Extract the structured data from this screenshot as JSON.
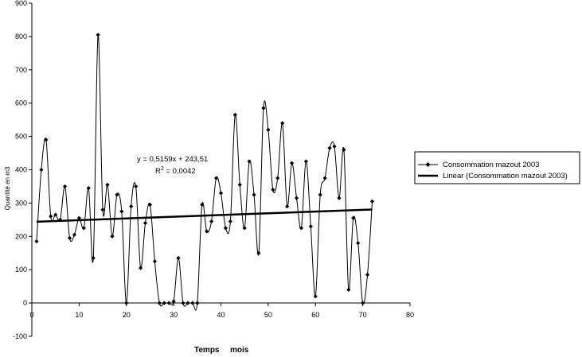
{
  "chart_data": {
    "type": "line",
    "title": "",
    "xlabel_left": "Temps",
    "xlabel_right": "mois",
    "ylabel": "Quantité en m3",
    "xlim": [
      0,
      80
    ],
    "ylim": [
      -100,
      900
    ],
    "xticks": [
      0,
      10,
      20,
      30,
      40,
      50,
      60,
      70,
      80
    ],
    "yticks": [
      -100,
      0,
      100,
      200,
      300,
      400,
      500,
      600,
      700,
      800,
      900
    ],
    "grid": false,
    "legend_position": "right",
    "series": [
      {
        "name": "Consommation mazout 2003",
        "type": "line-markers",
        "x": [
          1,
          2,
          3,
          4,
          5,
          6,
          7,
          8,
          9,
          10,
          11,
          12,
          13,
          14,
          15,
          16,
          17,
          18,
          19,
          20,
          21,
          22,
          23,
          24,
          25,
          26,
          27,
          28,
          29,
          30,
          31,
          32,
          33,
          34,
          35,
          36,
          37,
          38,
          39,
          40,
          41,
          42,
          43,
          44,
          45,
          46,
          47,
          48,
          49,
          50,
          51,
          52,
          53,
          54,
          55,
          56,
          57,
          58,
          59,
          60,
          61,
          62,
          63,
          64,
          65,
          66,
          67,
          68,
          69,
          70,
          71,
          72
        ],
        "values": [
          185,
          400,
          490,
          260,
          265,
          250,
          350,
          195,
          205,
          255,
          225,
          345,
          135,
          805,
          280,
          355,
          200,
          325,
          275,
          0,
          290,
          350,
          105,
          240,
          295,
          125,
          0,
          0,
          0,
          5,
          135,
          0,
          0,
          0,
          0,
          295,
          215,
          245,
          375,
          330,
          225,
          245,
          565,
          355,
          225,
          425,
          325,
          150,
          585,
          520,
          340,
          375,
          540,
          290,
          420,
          315,
          225,
          425,
          230,
          20,
          325,
          375,
          465,
          470,
          315,
          460,
          40,
          255,
          180,
          0,
          85,
          305
        ]
      },
      {
        "name": "Linear (Consommation mazout 2003)",
        "type": "trendline",
        "slope": 0.5159,
        "intercept": 243.51,
        "x_range": [
          1,
          72
        ]
      }
    ],
    "annotations": {
      "equation": "y = 0,5159x + 243,51",
      "r2_prefix": "R",
      "r2_sup": "2",
      "r2_value": " = 0,0042"
    }
  }
}
